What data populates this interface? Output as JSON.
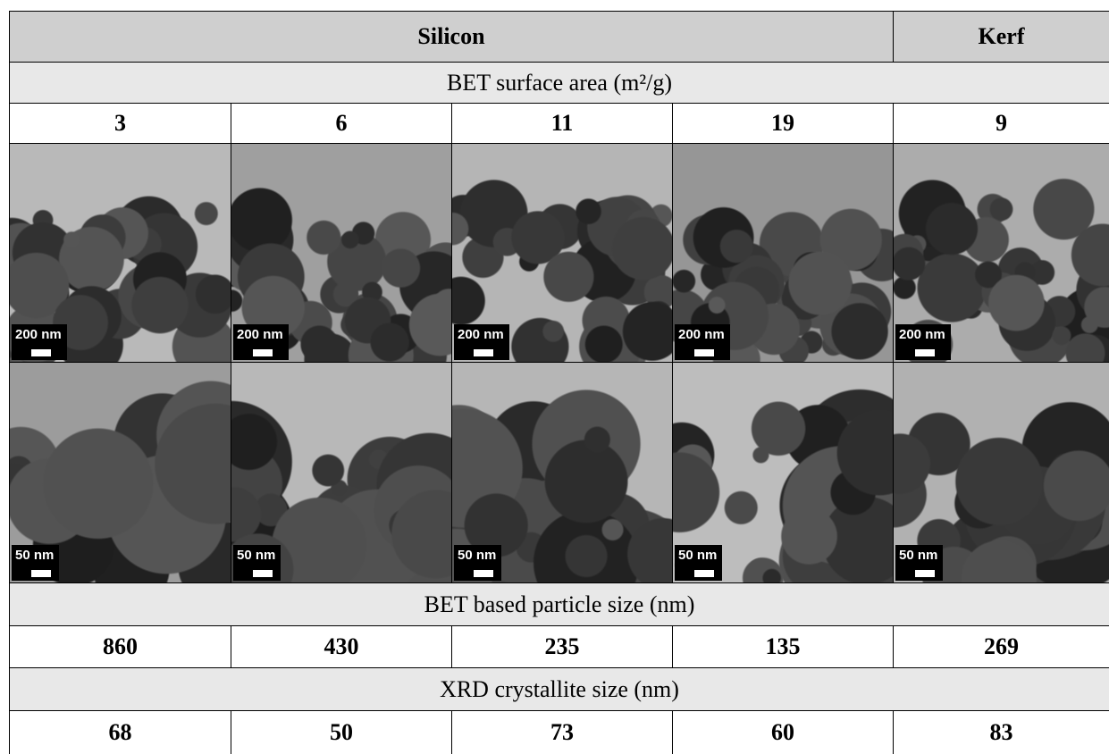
{
  "table": {
    "group_headers": [
      "Silicon",
      "Kerf"
    ],
    "sections": [
      {
        "title": "BET surface area (m²/g)",
        "values": [
          "3",
          "6",
          "11",
          "19",
          "9"
        ]
      },
      {
        "title": "BET based particle size (nm)",
        "values": [
          "860",
          "430",
          "235",
          "135",
          "269"
        ]
      },
      {
        "title": "XRD crystallite size (nm)",
        "values": [
          "68",
          "50",
          "73",
          "60",
          "83"
        ]
      }
    ],
    "micrographs": {
      "low_mag_scale": [
        "200 nm",
        "200 nm",
        "200 nm",
        "200 nm",
        "200 nm"
      ],
      "high_mag_scale": [
        "50 nm",
        "50 nm",
        "50 nm",
        "50 nm",
        "50 nm"
      ]
    }
  }
}
